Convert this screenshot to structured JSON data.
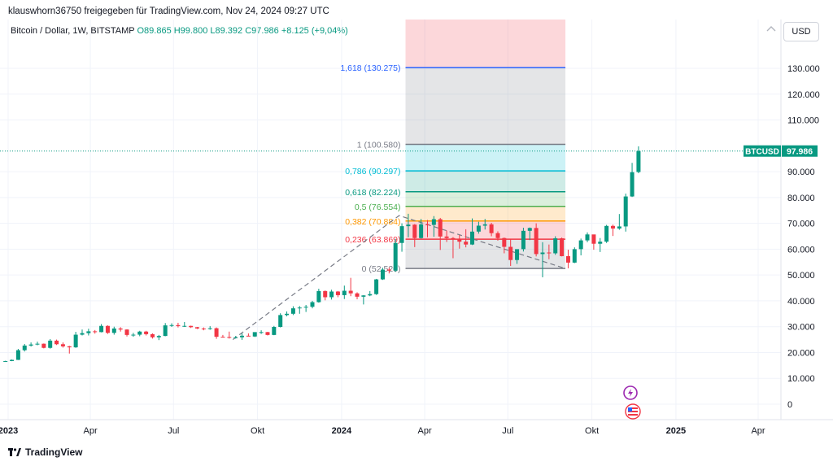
{
  "header": {
    "caption": "klauswhorn36750 freigegeben für TradingView.com, Nov 24, 2024 09:27 UTC"
  },
  "legend": {
    "symbol": "Bitcoin / Dollar, 1W, BITSTAMP",
    "ohlc": "O89.865  H99.800  L89.392  C97.986  +8.125 (+9,04%)"
  },
  "currency_button": "USD",
  "footer": {
    "brand": "TradingView"
  },
  "icons": [
    "tradingview-logo-icon",
    "lightning-icon",
    "us-flag-icon",
    "visibility-icon"
  ],
  "colors": {
    "up": "#089981",
    "down": "#f23645",
    "fib_0": "#787b86",
    "fib_0236": "#f23645",
    "fib_0382": "#ff9800",
    "fib_05": "#4caf50",
    "fib_0618": "#089981",
    "fib_0786": "#00bcd4",
    "fib_1": "#787b86",
    "fib_1618": "#2962ff",
    "last_price_label": "#089981"
  },
  "chart_data": {
    "type": "candlestick",
    "symbol": "BTCUSD",
    "interval": "1W",
    "x_ticks": [
      {
        "label": "2023",
        "date": "2023-01-01",
        "bold": true
      },
      {
        "label": "Apr",
        "date": "2023-04-01"
      },
      {
        "label": "Jul",
        "date": "2023-07-01"
      },
      {
        "label": "Okt",
        "date": "2023-10-01"
      },
      {
        "label": "2024",
        "date": "2024-01-01",
        "bold": true
      },
      {
        "label": "Apr",
        "date": "2024-04-01"
      },
      {
        "label": "Jul",
        "date": "2024-07-01"
      },
      {
        "label": "Okt",
        "date": "2024-10-01"
      },
      {
        "label": "2025",
        "date": "2025-01-01",
        "bold": true
      },
      {
        "label": "Apr",
        "date": "2025-04-01"
      }
    ],
    "y_ticks": [
      {
        "value": 0,
        "label": "0"
      },
      {
        "value": 10000,
        "label": "10.000"
      },
      {
        "value": 20000,
        "label": "20.000"
      },
      {
        "value": 30000,
        "label": "30.000"
      },
      {
        "value": 40000,
        "label": "40.000"
      },
      {
        "value": 50000,
        "label": "50.000"
      },
      {
        "value": 60000,
        "label": "60.000"
      },
      {
        "value": 70000,
        "label": "70.000"
      },
      {
        "value": 80000,
        "label": "80.000"
      },
      {
        "value": 90000,
        "label": "90.000"
      },
      {
        "value": 110000,
        "label": "110.000"
      },
      {
        "value": 120000,
        "label": "120.000"
      },
      {
        "value": 130000,
        "label": "130.000"
      }
    ],
    "last_price": {
      "symbol": "BTCUSD",
      "value": 97986,
      "label": "97.986"
    },
    "fib_retracement": {
      "start_date": "2024-03-11",
      "end_date": "2024-09-02",
      "levels": [
        {
          "ratio": 1.618,
          "price": 130275,
          "label": "1,618 (130.275)",
          "color": "#2962ff"
        },
        {
          "ratio": 1,
          "price": 100580,
          "label": "1 (100.580)",
          "color": "#787b86"
        },
        {
          "ratio": 0.786,
          "price": 90297,
          "label": "0,786 (90.297)",
          "color": "#00bcd4"
        },
        {
          "ratio": 0.618,
          "price": 82224,
          "label": "0,618 (82.224)",
          "color": "#089981"
        },
        {
          "ratio": 0.5,
          "price": 76554,
          "label": "0,5 (76.554)",
          "color": "#4caf50"
        },
        {
          "ratio": 0.382,
          "price": 70884,
          "label": "0,382 (70.884)",
          "color": "#ff9800"
        },
        {
          "ratio": 0.236,
          "price": 63869,
          "label": "0,236 (63.869)",
          "color": "#f23645"
        },
        {
          "ratio": 0,
          "price": 52520,
          "label": "0 (52.520)",
          "color": "#787b86"
        }
      ]
    },
    "trend_line": [
      {
        "date": "2023-09-04",
        "price": 25000
      },
      {
        "date": "2024-03-04",
        "price": 73000
      },
      {
        "date": "2024-09-02",
        "price": 52520
      }
    ],
    "candles": [
      {
        "date": "2022-12-26",
        "o": 16550,
        "h": 16800,
        "l": 16450,
        "c": 16700
      },
      {
        "date": "2023-01-02",
        "o": 16700,
        "h": 17300,
        "l": 16650,
        "c": 17150
      },
      {
        "date": "2023-01-09",
        "o": 17150,
        "h": 21400,
        "l": 17100,
        "c": 20900
      },
      {
        "date": "2023-01-16",
        "o": 20900,
        "h": 23300,
        "l": 20400,
        "c": 22700
      },
      {
        "date": "2023-01-23",
        "o": 22700,
        "h": 23900,
        "l": 22300,
        "c": 23100
      },
      {
        "date": "2023-01-30",
        "o": 23100,
        "h": 24200,
        "l": 22800,
        "c": 23400
      },
      {
        "date": "2023-02-06",
        "o": 23400,
        "h": 23500,
        "l": 21600,
        "c": 21800
      },
      {
        "date": "2023-02-13",
        "o": 21800,
        "h": 25200,
        "l": 21500,
        "c": 24600
      },
      {
        "date": "2023-02-20",
        "o": 24600,
        "h": 25000,
        "l": 22900,
        "c": 23200
      },
      {
        "date": "2023-02-27",
        "o": 23200,
        "h": 23900,
        "l": 21900,
        "c": 22400
      },
      {
        "date": "2023-03-06",
        "o": 22400,
        "h": 22600,
        "l": 19600,
        "c": 22000
      },
      {
        "date": "2023-03-13",
        "o": 22000,
        "h": 28000,
        "l": 21800,
        "c": 26900
      },
      {
        "date": "2023-03-20",
        "o": 26900,
        "h": 28900,
        "l": 26600,
        "c": 27500
      },
      {
        "date": "2023-03-27",
        "o": 27500,
        "h": 29200,
        "l": 26600,
        "c": 28200
      },
      {
        "date": "2023-04-03",
        "o": 28200,
        "h": 28700,
        "l": 27300,
        "c": 27900
      },
      {
        "date": "2023-04-10",
        "o": 27900,
        "h": 31000,
        "l": 27800,
        "c": 30300
      },
      {
        "date": "2023-04-17",
        "o": 30300,
        "h": 30500,
        "l": 27200,
        "c": 27600
      },
      {
        "date": "2023-04-24",
        "o": 27600,
        "h": 30000,
        "l": 26900,
        "c": 29300
      },
      {
        "date": "2023-05-01",
        "o": 29300,
        "h": 29800,
        "l": 28100,
        "c": 28900
      },
      {
        "date": "2023-05-08",
        "o": 28900,
        "h": 29000,
        "l": 26200,
        "c": 26800
      },
      {
        "date": "2023-05-15",
        "o": 26800,
        "h": 27600,
        "l": 26100,
        "c": 26900
      },
      {
        "date": "2023-05-22",
        "o": 26900,
        "h": 28400,
        "l": 26300,
        "c": 28100
      },
      {
        "date": "2023-05-29",
        "o": 28100,
        "h": 28400,
        "l": 26600,
        "c": 27100
      },
      {
        "date": "2023-06-05",
        "o": 27100,
        "h": 27400,
        "l": 25400,
        "c": 25900
      },
      {
        "date": "2023-06-12",
        "o": 25900,
        "h": 26800,
        "l": 24800,
        "c": 26400
      },
      {
        "date": "2023-06-19",
        "o": 26400,
        "h": 31400,
        "l": 26300,
        "c": 30500
      },
      {
        "date": "2023-06-26",
        "o": 30500,
        "h": 31300,
        "l": 29900,
        "c": 30600
      },
      {
        "date": "2023-07-03",
        "o": 30600,
        "h": 31500,
        "l": 29700,
        "c": 30200
      },
      {
        "date": "2023-07-10",
        "o": 30200,
        "h": 31800,
        "l": 29900,
        "c": 30300
      },
      {
        "date": "2023-07-17",
        "o": 30300,
        "h": 30400,
        "l": 29500,
        "c": 29800
      },
      {
        "date": "2023-07-24",
        "o": 29800,
        "h": 29900,
        "l": 29100,
        "c": 29300
      },
      {
        "date": "2023-07-31",
        "o": 29300,
        "h": 29700,
        "l": 28600,
        "c": 29100
      },
      {
        "date": "2023-08-07",
        "o": 29100,
        "h": 30200,
        "l": 28800,
        "c": 29400
      },
      {
        "date": "2023-08-14",
        "o": 29400,
        "h": 29700,
        "l": 25300,
        "c": 26100
      },
      {
        "date": "2023-08-21",
        "o": 26100,
        "h": 26800,
        "l": 25800,
        "c": 26000
      },
      {
        "date": "2023-08-28",
        "o": 26000,
        "h": 28100,
        "l": 25400,
        "c": 25800
      },
      {
        "date": "2023-09-04",
        "o": 25800,
        "h": 26400,
        "l": 25400,
        "c": 25900
      },
      {
        "date": "2023-09-11",
        "o": 25900,
        "h": 27400,
        "l": 24900,
        "c": 26500
      },
      {
        "date": "2023-09-18",
        "o": 26500,
        "h": 27400,
        "l": 26300,
        "c": 26200
      },
      {
        "date": "2023-09-25",
        "o": 26200,
        "h": 27800,
        "l": 26000,
        "c": 27900
      },
      {
        "date": "2023-10-02",
        "o": 27900,
        "h": 28600,
        "l": 27200,
        "c": 27900
      },
      {
        "date": "2023-10-09",
        "o": 27900,
        "h": 28000,
        "l": 26600,
        "c": 26800
      },
      {
        "date": "2023-10-16",
        "o": 26800,
        "h": 30300,
        "l": 26700,
        "c": 29900
      },
      {
        "date": "2023-10-23",
        "o": 29900,
        "h": 35200,
        "l": 29700,
        "c": 34500
      },
      {
        "date": "2023-10-30",
        "o": 34500,
        "h": 35900,
        "l": 34000,
        "c": 35000
      },
      {
        "date": "2023-11-06",
        "o": 35000,
        "h": 37900,
        "l": 34500,
        "c": 37100
      },
      {
        "date": "2023-11-13",
        "o": 37100,
        "h": 38000,
        "l": 35000,
        "c": 37400
      },
      {
        "date": "2023-11-20",
        "o": 37400,
        "h": 38400,
        "l": 35700,
        "c": 37700
      },
      {
        "date": "2023-11-27",
        "o": 37700,
        "h": 40000,
        "l": 37100,
        "c": 39500
      },
      {
        "date": "2023-12-04",
        "o": 39500,
        "h": 44700,
        "l": 39300,
        "c": 43800
      },
      {
        "date": "2023-12-11",
        "o": 43800,
        "h": 44000,
        "l": 40200,
        "c": 41400
      },
      {
        "date": "2023-12-18",
        "o": 41400,
        "h": 44300,
        "l": 40500,
        "c": 43600
      },
      {
        "date": "2023-12-25",
        "o": 43600,
        "h": 43800,
        "l": 41400,
        "c": 42200
      },
      {
        "date": "2024-01-01",
        "o": 42200,
        "h": 45900,
        "l": 40700,
        "c": 43900
      },
      {
        "date": "2024-01-08",
        "o": 43900,
        "h": 48900,
        "l": 41800,
        "c": 42900
      },
      {
        "date": "2024-01-15",
        "o": 42900,
        "h": 43300,
        "l": 40600,
        "c": 41600
      },
      {
        "date": "2024-01-22",
        "o": 41600,
        "h": 42200,
        "l": 38600,
        "c": 42100
      },
      {
        "date": "2024-01-29",
        "o": 42100,
        "h": 43800,
        "l": 41800,
        "c": 42600
      },
      {
        "date": "2024-02-05",
        "o": 42600,
        "h": 48500,
        "l": 42300,
        "c": 48300
      },
      {
        "date": "2024-02-12",
        "o": 48300,
        "h": 52800,
        "l": 48100,
        "c": 52100
      },
      {
        "date": "2024-02-19",
        "o": 52100,
        "h": 52900,
        "l": 50600,
        "c": 51700
      },
      {
        "date": "2024-02-26",
        "o": 51700,
        "h": 64000,
        "l": 51200,
        "c": 62400
      },
      {
        "date": "2024-03-04",
        "o": 62400,
        "h": 70000,
        "l": 59000,
        "c": 68900
      },
      {
        "date": "2024-03-11",
        "o": 68900,
        "h": 73700,
        "l": 64600,
        "c": 69500
      },
      {
        "date": "2024-03-18",
        "o": 69500,
        "h": 69700,
        "l": 60800,
        "c": 64300
      },
      {
        "date": "2024-03-25",
        "o": 64300,
        "h": 71700,
        "l": 64100,
        "c": 69600
      },
      {
        "date": "2024-04-01",
        "o": 69600,
        "h": 71300,
        "l": 64600,
        "c": 69400
      },
      {
        "date": "2024-04-08",
        "o": 69400,
        "h": 72800,
        "l": 64800,
        "c": 71600
      },
      {
        "date": "2024-04-15",
        "o": 71600,
        "h": 72100,
        "l": 59700,
        "c": 64900
      },
      {
        "date": "2024-04-22",
        "o": 64900,
        "h": 67200,
        "l": 62800,
        "c": 64300
      },
      {
        "date": "2024-04-29",
        "o": 64300,
        "h": 64700,
        "l": 56500,
        "c": 63900
      },
      {
        "date": "2024-05-06",
        "o": 63900,
        "h": 65500,
        "l": 60200,
        "c": 62900
      },
      {
        "date": "2024-05-13",
        "o": 62900,
        "h": 67700,
        "l": 60700,
        "c": 61800
      },
      {
        "date": "2024-05-20",
        "o": 61800,
        "h": 71900,
        "l": 61600,
        "c": 66800
      },
      {
        "date": "2024-05-27",
        "o": 66800,
        "h": 70600,
        "l": 66000,
        "c": 69100
      },
      {
        "date": "2024-06-03",
        "o": 69100,
        "h": 71700,
        "l": 67600,
        "c": 69600
      },
      {
        "date": "2024-06-10",
        "o": 69600,
        "h": 70200,
        "l": 65000,
        "c": 66200
      },
      {
        "date": "2024-06-17",
        "o": 66200,
        "h": 66900,
        "l": 63300,
        "c": 64300
      },
      {
        "date": "2024-06-24",
        "o": 64300,
        "h": 64500,
        "l": 58400,
        "c": 60900
      },
      {
        "date": "2024-07-01",
        "o": 60900,
        "h": 63800,
        "l": 53500,
        "c": 55800
      },
      {
        "date": "2024-07-08",
        "o": 55800,
        "h": 59400,
        "l": 54300,
        "c": 60000
      },
      {
        "date": "2024-07-15",
        "o": 60000,
        "h": 68300,
        "l": 59100,
        "c": 67100
      },
      {
        "date": "2024-07-22",
        "o": 67100,
        "h": 68400,
        "l": 63500,
        "c": 68200
      },
      {
        "date": "2024-07-29",
        "o": 68200,
        "h": 70000,
        "l": 57200,
        "c": 58100
      },
      {
        "date": "2024-08-05",
        "o": 58100,
        "h": 62700,
        "l": 49100,
        "c": 58700
      },
      {
        "date": "2024-08-12",
        "o": 58700,
        "h": 61800,
        "l": 56100,
        "c": 58400
      },
      {
        "date": "2024-08-19",
        "o": 58400,
        "h": 65000,
        "l": 57800,
        "c": 64200
      },
      {
        "date": "2024-08-26",
        "o": 64200,
        "h": 64500,
        "l": 57200,
        "c": 57300
      },
      {
        "date": "2024-09-02",
        "o": 57300,
        "h": 59800,
        "l": 52600,
        "c": 54800
      },
      {
        "date": "2024-09-09",
        "o": 54800,
        "h": 60700,
        "l": 54600,
        "c": 60000
      },
      {
        "date": "2024-09-16",
        "o": 60000,
        "h": 64100,
        "l": 57600,
        "c": 63400
      },
      {
        "date": "2024-09-23",
        "o": 63400,
        "h": 66500,
        "l": 62700,
        "c": 65700
      },
      {
        "date": "2024-09-30",
        "o": 65700,
        "h": 65600,
        "l": 59800,
        "c": 62100
      },
      {
        "date": "2024-10-07",
        "o": 62100,
        "h": 64300,
        "l": 58900,
        "c": 62900
      },
      {
        "date": "2024-10-14",
        "o": 62900,
        "h": 69400,
        "l": 62400,
        "c": 69000
      },
      {
        "date": "2024-10-21",
        "o": 69000,
        "h": 69500,
        "l": 65100,
        "c": 68000
      },
      {
        "date": "2024-10-28",
        "o": 68000,
        "h": 73600,
        "l": 67500,
        "c": 68800
      },
      {
        "date": "2024-11-04",
        "o": 68800,
        "h": 81500,
        "l": 66800,
        "c": 80400
      },
      {
        "date": "2024-11-11",
        "o": 80400,
        "h": 93400,
        "l": 80200,
        "c": 89800
      },
      {
        "date": "2024-11-18",
        "o": 89865,
        "h": 99800,
        "l": 89392,
        "c": 97986
      }
    ]
  }
}
